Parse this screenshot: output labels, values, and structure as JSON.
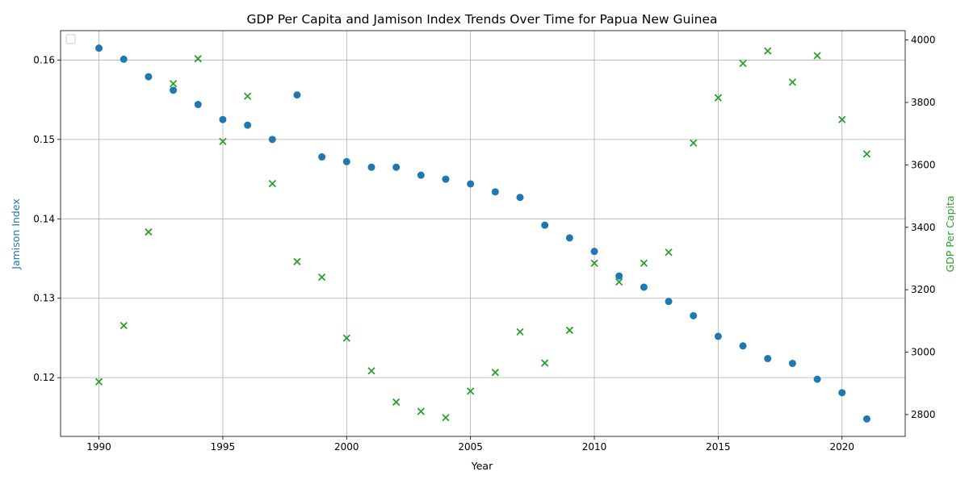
{
  "chart_data": {
    "type": "scatter",
    "title": "GDP Per Capita and Jamison Index Trends Over Time for Papua New Guinea",
    "xlabel": "Year",
    "ylabel_left": "Jamison Index",
    "ylabel_right": "GDP Per Capita",
    "xlim": [
      1988.45,
      1992.55
    ],
    "x_ticks": [
      1990,
      1995,
      2000,
      2005,
      2010,
      2015,
      2020
    ],
    "ylim_left": [
      0.1126,
      0.1637
    ],
    "y_ticks_left": [
      0.12,
      0.13,
      0.14,
      0.15,
      0.16
    ],
    "ylim_right": [
      2730,
      4030
    ],
    "y_ticks_right": [
      2800,
      3000,
      3200,
      3400,
      3600,
      3800,
      4000
    ],
    "grid": true,
    "legend": "top-left (empty)",
    "series": [
      {
        "axis": "left",
        "marker": "circle",
        "color": "#1f77b4",
        "x": [
          1990,
          1991,
          1992,
          1993,
          1994,
          1995,
          1996,
          1997,
          1998,
          1999,
          2000,
          2001,
          2002,
          2003,
          2004,
          2005,
          2006,
          2007,
          2008,
          2009,
          2010,
          2011,
          2012,
          2013,
          2014,
          2015,
          2016,
          2017,
          2018,
          2019,
          2020,
          2021
        ],
        "values": [
          0.1615,
          0.1601,
          0.1579,
          0.1562,
          0.1544,
          0.1525,
          0.1518,
          0.15,
          0.1556,
          0.1478,
          0.1472,
          0.1465,
          0.1465,
          0.1455,
          0.145,
          0.1444,
          0.1434,
          0.1427,
          0.1392,
          0.1376,
          0.1359,
          0.1328,
          0.1314,
          0.1296,
          0.1278,
          0.1252,
          0.124,
          0.1224,
          0.1218,
          0.1198,
          0.1181,
          0.1148
        ]
      },
      {
        "axis": "right",
        "marker": "x",
        "color": "#2ca02c",
        "x": [
          1990,
          1991,
          1992,
          1993,
          1994,
          1995,
          1996,
          1997,
          1998,
          1999,
          2000,
          2001,
          2002,
          2003,
          2004,
          2005,
          2006,
          2007,
          2008,
          2009,
          2010,
          2011,
          2012,
          2013,
          2014,
          2015,
          2016,
          2017,
          2018,
          2019,
          2020,
          2021
        ],
        "values": [
          2905,
          3085,
          3385,
          3860,
          3940,
          3675,
          3820,
          3540,
          3290,
          3240,
          3045,
          2940,
          2840,
          2810,
          2790,
          2875,
          2935,
          3065,
          2965,
          3070,
          3285,
          3225,
          3285,
          3320,
          3670,
          3815,
          3925,
          3965,
          3865,
          3950,
          3745,
          3635
        ]
      }
    ]
  }
}
